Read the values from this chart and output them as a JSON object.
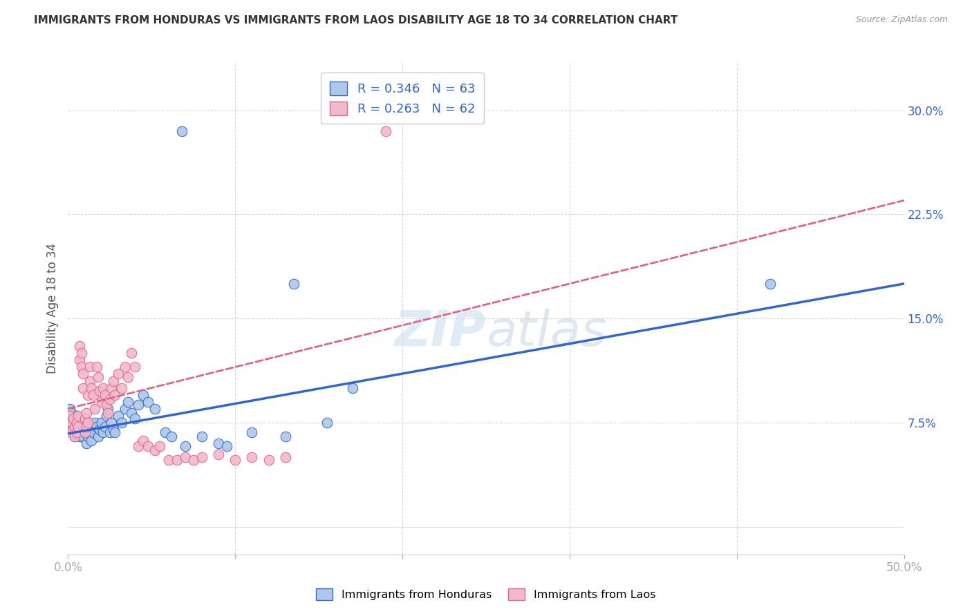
{
  "title": "IMMIGRANTS FROM HONDURAS VS IMMIGRANTS FROM LAOS DISABILITY AGE 18 TO 34 CORRELATION CHART",
  "source": "Source: ZipAtlas.com",
  "ylabel": "Disability Age 18 to 34",
  "xlim": [
    0.0,
    0.5
  ],
  "ylim": [
    -0.02,
    0.335
  ],
  "xticks": [
    0.0,
    0.1,
    0.2,
    0.3,
    0.4,
    0.5
  ],
  "xtick_labels": [
    "0.0%",
    "",
    "",
    "",
    "",
    "50.0%"
  ],
  "yticks": [
    0.075,
    0.15,
    0.225,
    0.3
  ],
  "ytick_labels": [
    "7.5%",
    "15.0%",
    "22.5%",
    "30.0%"
  ],
  "legend_labels": [
    "Immigrants from Honduras",
    "Immigrants from Laos"
  ],
  "r_honduras": 0.346,
  "n_honduras": 63,
  "r_laos": 0.263,
  "n_laos": 62,
  "color_honduras": "#adc8e8",
  "color_laos": "#f2b8cc",
  "line_color_honduras": "#3366cc",
  "line_color_laos": "#dd6688",
  "background_color": "#ffffff",
  "grid_color": "#d8d8d8",
  "watermark_zip": "ZIP",
  "watermark_atlas": "atlas",
  "blue_line_x0": 0.0,
  "blue_line_y0": 0.067,
  "blue_line_x1": 0.5,
  "blue_line_y1": 0.175,
  "pink_line_x0": 0.0,
  "pink_line_y0": 0.085,
  "pink_line_x1": 0.5,
  "pink_line_y1": 0.235,
  "honduras_pts": [
    [
      0.001,
      0.085
    ],
    [
      0.002,
      0.082
    ],
    [
      0.002,
      0.075
    ],
    [
      0.003,
      0.078
    ],
    [
      0.003,
      0.072
    ],
    [
      0.004,
      0.068
    ],
    [
      0.004,
      0.065
    ],
    [
      0.005,
      0.08
    ],
    [
      0.005,
      0.07
    ],
    [
      0.006,
      0.075
    ],
    [
      0.006,
      0.068
    ],
    [
      0.007,
      0.072
    ],
    [
      0.007,
      0.065
    ],
    [
      0.008,
      0.078
    ],
    [
      0.008,
      0.068
    ],
    [
      0.009,
      0.072
    ],
    [
      0.009,
      0.065
    ],
    [
      0.01,
      0.075
    ],
    [
      0.01,
      0.068
    ],
    [
      0.011,
      0.07
    ],
    [
      0.011,
      0.06
    ],
    [
      0.012,
      0.075
    ],
    [
      0.012,
      0.065
    ],
    [
      0.013,
      0.068
    ],
    [
      0.014,
      0.072
    ],
    [
      0.014,
      0.062
    ],
    [
      0.015,
      0.068
    ],
    [
      0.016,
      0.075
    ],
    [
      0.017,
      0.072
    ],
    [
      0.018,
      0.065
    ],
    [
      0.019,
      0.07
    ],
    [
      0.02,
      0.075
    ],
    [
      0.021,
      0.068
    ],
    [
      0.022,
      0.072
    ],
    [
      0.023,
      0.08
    ],
    [
      0.024,
      0.085
    ],
    [
      0.025,
      0.068
    ],
    [
      0.026,
      0.075
    ],
    [
      0.027,
      0.07
    ],
    [
      0.028,
      0.068
    ],
    [
      0.03,
      0.08
    ],
    [
      0.032,
      0.075
    ],
    [
      0.034,
      0.085
    ],
    [
      0.036,
      0.09
    ],
    [
      0.038,
      0.082
    ],
    [
      0.04,
      0.078
    ],
    [
      0.042,
      0.088
    ],
    [
      0.045,
      0.095
    ],
    [
      0.048,
      0.09
    ],
    [
      0.052,
      0.085
    ],
    [
      0.058,
      0.068
    ],
    [
      0.062,
      0.065
    ],
    [
      0.07,
      0.058
    ],
    [
      0.08,
      0.065
    ],
    [
      0.09,
      0.06
    ],
    [
      0.095,
      0.058
    ],
    [
      0.11,
      0.068
    ],
    [
      0.13,
      0.065
    ],
    [
      0.155,
      0.075
    ],
    [
      0.17,
      0.1
    ],
    [
      0.068,
      0.285
    ],
    [
      0.135,
      0.175
    ],
    [
      0.42,
      0.175
    ]
  ],
  "laos_pts": [
    [
      0.001,
      0.08
    ],
    [
      0.002,
      0.075
    ],
    [
      0.002,
      0.068
    ],
    [
      0.003,
      0.078
    ],
    [
      0.003,
      0.07
    ],
    [
      0.004,
      0.065
    ],
    [
      0.004,
      0.072
    ],
    [
      0.005,
      0.075
    ],
    [
      0.005,
      0.068
    ],
    [
      0.006,
      0.08
    ],
    [
      0.006,
      0.072
    ],
    [
      0.007,
      0.13
    ],
    [
      0.007,
      0.12
    ],
    [
      0.008,
      0.125
    ],
    [
      0.008,
      0.115
    ],
    [
      0.009,
      0.11
    ],
    [
      0.009,
      0.1
    ],
    [
      0.01,
      0.078
    ],
    [
      0.01,
      0.068
    ],
    [
      0.011,
      0.072
    ],
    [
      0.011,
      0.082
    ],
    [
      0.012,
      0.075
    ],
    [
      0.012,
      0.095
    ],
    [
      0.013,
      0.115
    ],
    [
      0.013,
      0.105
    ],
    [
      0.014,
      0.1
    ],
    [
      0.015,
      0.095
    ],
    [
      0.016,
      0.085
    ],
    [
      0.017,
      0.115
    ],
    [
      0.018,
      0.108
    ],
    [
      0.019,
      0.098
    ],
    [
      0.02,
      0.09
    ],
    [
      0.021,
      0.1
    ],
    [
      0.022,
      0.095
    ],
    [
      0.023,
      0.088
    ],
    [
      0.024,
      0.082
    ],
    [
      0.025,
      0.092
    ],
    [
      0.026,
      0.1
    ],
    [
      0.027,
      0.105
    ],
    [
      0.028,
      0.095
    ],
    [
      0.03,
      0.11
    ],
    [
      0.032,
      0.1
    ],
    [
      0.034,
      0.115
    ],
    [
      0.036,
      0.108
    ],
    [
      0.038,
      0.125
    ],
    [
      0.04,
      0.115
    ],
    [
      0.042,
      0.058
    ],
    [
      0.045,
      0.062
    ],
    [
      0.048,
      0.058
    ],
    [
      0.052,
      0.055
    ],
    [
      0.055,
      0.058
    ],
    [
      0.06,
      0.048
    ],
    [
      0.065,
      0.048
    ],
    [
      0.07,
      0.05
    ],
    [
      0.075,
      0.048
    ],
    [
      0.08,
      0.05
    ],
    [
      0.09,
      0.052
    ],
    [
      0.1,
      0.048
    ],
    [
      0.11,
      0.05
    ],
    [
      0.12,
      0.048
    ],
    [
      0.13,
      0.05
    ],
    [
      0.19,
      0.285
    ]
  ]
}
